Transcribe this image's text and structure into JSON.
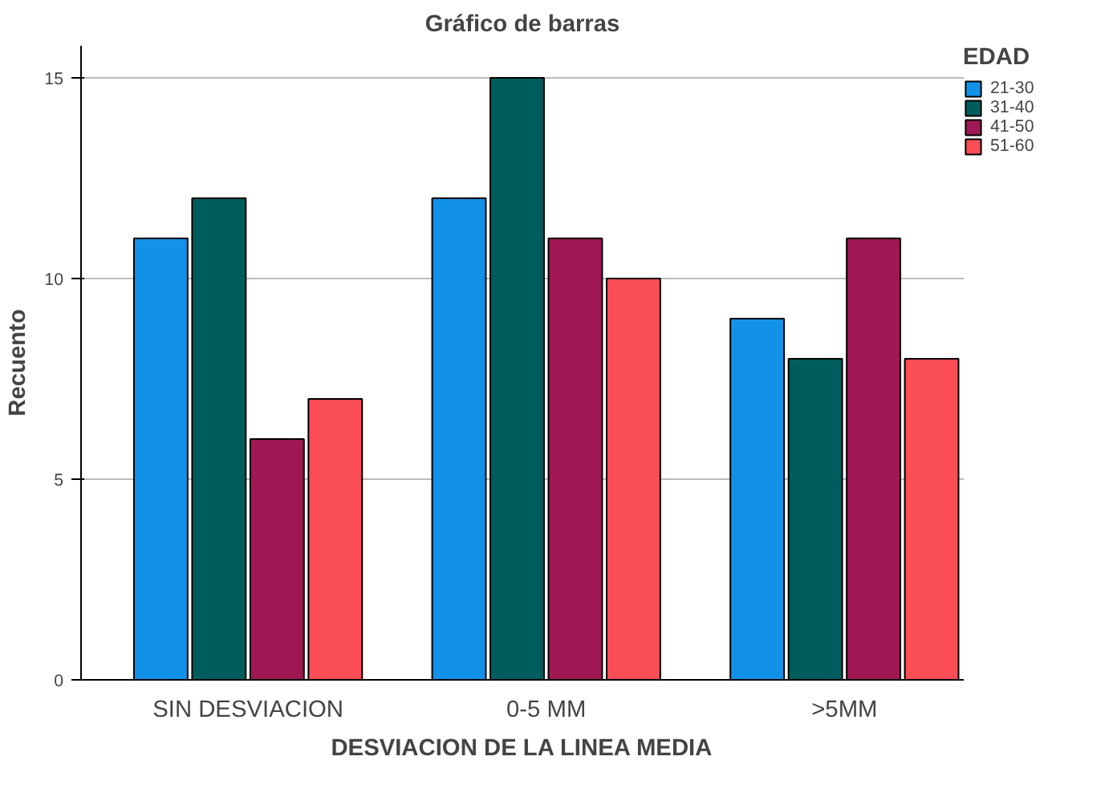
{
  "chart_data": {
    "type": "bar",
    "title": "Gráfico de barras",
    "xlabel": "DESVIACION DE LA LINEA MEDIA",
    "ylabel": "Recuento",
    "legend_title": "EDAD",
    "categories": [
      "SIN DESVIACION",
      "0-5 MM",
      ">5MM"
    ],
    "series": [
      {
        "name": "21-30",
        "color": "#1192e8",
        "values": [
          11,
          12,
          9
        ]
      },
      {
        "name": "31-40",
        "color": "#005d5d",
        "values": [
          12,
          15,
          8
        ]
      },
      {
        "name": "41-50",
        "color": "#9f1853",
        "values": [
          6,
          11,
          11
        ]
      },
      {
        "name": "51-60",
        "color": "#fa4d56",
        "values": [
          7,
          10,
          8
        ]
      }
    ],
    "ylim": [
      0,
      15.8
    ],
    "yticks": [
      0,
      5,
      10,
      15
    ],
    "grid": "y",
    "legend": "top right"
  }
}
